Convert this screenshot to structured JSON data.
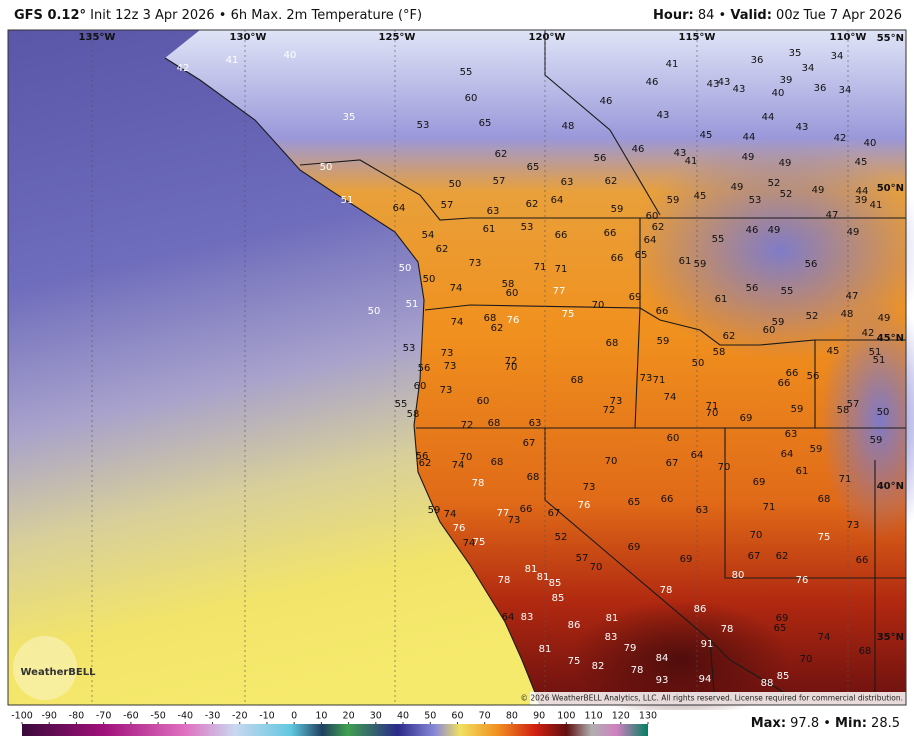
{
  "header": {
    "model": "GFS 0.12°",
    "title": "Init 12z 3 Apr 2026 • 6h Max. 2m Temperature (°F)",
    "hour_label": "Hour:",
    "hour_value": "84 •",
    "valid_label": "Valid:",
    "valid_value": "00z Tue 7 Apr 2026"
  },
  "grid_labels": {
    "lon": [
      "135°W",
      "130°W",
      "125°W",
      "120°W",
      "115°W",
      "110°W"
    ],
    "lat": [
      "55°N",
      "50°N",
      "45°N",
      "40°N",
      "35°N"
    ]
  },
  "stations": [
    42,
    41,
    40,
    35,
    55,
    60,
    53,
    65,
    48,
    46,
    41,
    46,
    43,
    43,
    43,
    36,
    35,
    34,
    34,
    39,
    40,
    36,
    34,
    43,
    44,
    43,
    45,
    44,
    42,
    40,
    46,
    43,
    41,
    49,
    49,
    45,
    56,
    62,
    65,
    50,
    57,
    63,
    62,
    50,
    49,
    52,
    52,
    49,
    44,
    39,
    41,
    45,
    53,
    59,
    47,
    51,
    64,
    57,
    63,
    62,
    64,
    59,
    60,
    62,
    61,
    53,
    66,
    66,
    64,
    55,
    46,
    49,
    49,
    54,
    62,
    50,
    50,
    73,
    71,
    71,
    66,
    65,
    61,
    59,
    56,
    74,
    58,
    60,
    77,
    70,
    69,
    66,
    61,
    56,
    55,
    47,
    51,
    50,
    74,
    68,
    76,
    75,
    62,
    49,
    52,
    48,
    59,
    60,
    62,
    42,
    53,
    73,
    73,
    72,
    70,
    68,
    59,
    58,
    45,
    51,
    51,
    56,
    50,
    66,
    56,
    68,
    73,
    71,
    66,
    60,
    73,
    74,
    60,
    55,
    73,
    72,
    71,
    70,
    69,
    59,
    57,
    58,
    50,
    58,
    72,
    68,
    63,
    63,
    67,
    60,
    59,
    64,
    64,
    59,
    56,
    62,
    70,
    74,
    68,
    70,
    67,
    70,
    61,
    71,
    68,
    73,
    69,
    78,
    76,
    65,
    66,
    68,
    63,
    71,
    59,
    74,
    77,
    73,
    66,
    67,
    73,
    76,
    70,
    75,
    52,
    74,
    75,
    69,
    67,
    62,
    66,
    57,
    70,
    69,
    81,
    81,
    85,
    78,
    80,
    76,
    78,
    85,
    86,
    64,
    83,
    86,
    81,
    69,
    65,
    78,
    74,
    83,
    91,
    81,
    79,
    68,
    84,
    75,
    82,
    70,
    78,
    85,
    93,
    94,
    88
  ],
  "logo": "WeatherBELL",
  "copyright": "© 2026 WeatherBELL Analytics, LLC. All rights reserved. License required for commercial distribution.",
  "colorbar_ticks": [
    -100,
    -90,
    -80,
    -70,
    -60,
    -50,
    -40,
    -30,
    -20,
    -10,
    0,
    10,
    20,
    30,
    40,
    50,
    60,
    70,
    80,
    90,
    100,
    110,
    120,
    130
  ],
  "footer": {
    "max_label": "Max:",
    "max_value": "97.8 •",
    "min_label": "Min:",
    "min_value": "28.5"
  }
}
